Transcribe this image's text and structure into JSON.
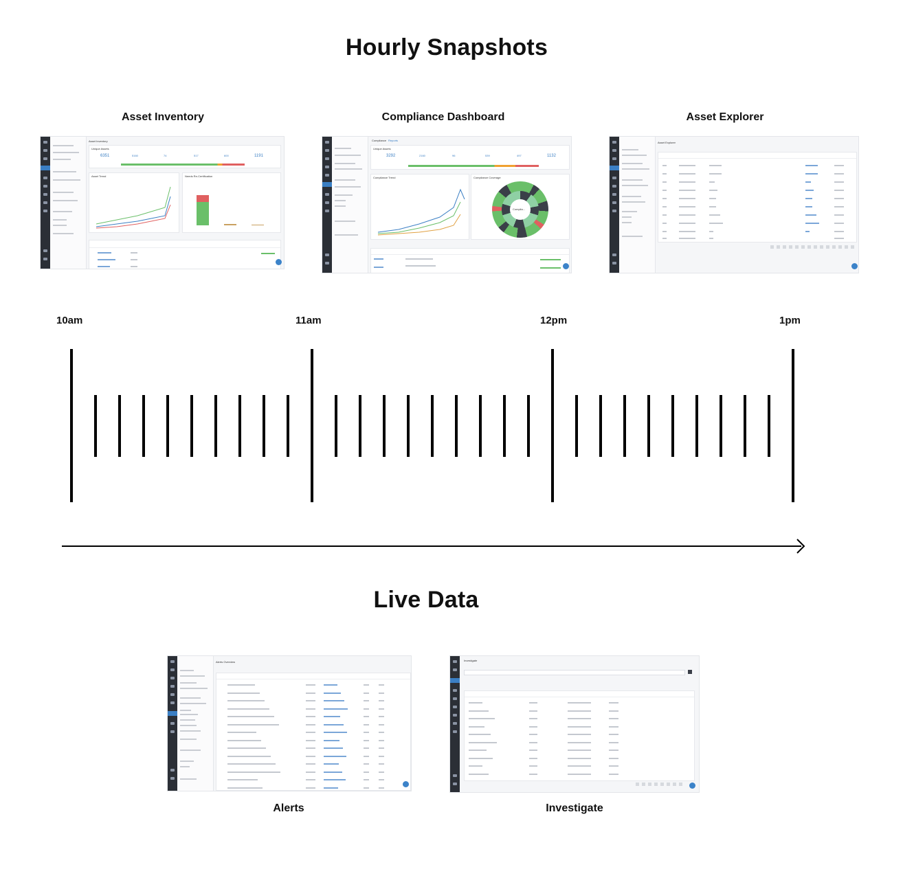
{
  "heading_top": "Hourly Snapshots",
  "heading_bottom": "Live Data",
  "snapshots": [
    {
      "label": "Asset Inventory"
    },
    {
      "label": "Compliance Dashboard"
    },
    {
      "label": "Asset Explorer"
    }
  ],
  "live": [
    {
      "label": "Alerts"
    },
    {
      "label": "Investigate"
    }
  ],
  "timeline": {
    "hours": [
      "10am",
      "11am",
      "12pm",
      "1pm"
    ],
    "minor_ticks_per_hour": 9
  },
  "thumb_text": {
    "asset_inventory": {
      "page": "Asset Inventory",
      "unique_assets": "Unique Assets",
      "stats": [
        "6351",
        "5160",
        "74",
        "517",
        "600",
        "1191"
      ],
      "trend": "Asset Trend",
      "recert": "Needs Re-Certification"
    },
    "compliance": {
      "tabs": [
        "Compliance",
        "Reports"
      ],
      "unique_assets": "Unique Assets",
      "stats": [
        "3292",
        "2160",
        "96",
        "539",
        "497",
        "1132"
      ],
      "trend": "Compliance Trend",
      "coverage": "Compliance Coverage",
      "center": "Complia..."
    },
    "explorer": {
      "page": "Asset Explorer"
    },
    "alerts": {
      "page": "Alerts Overview"
    },
    "investigate": {
      "page": "Investigate"
    }
  }
}
